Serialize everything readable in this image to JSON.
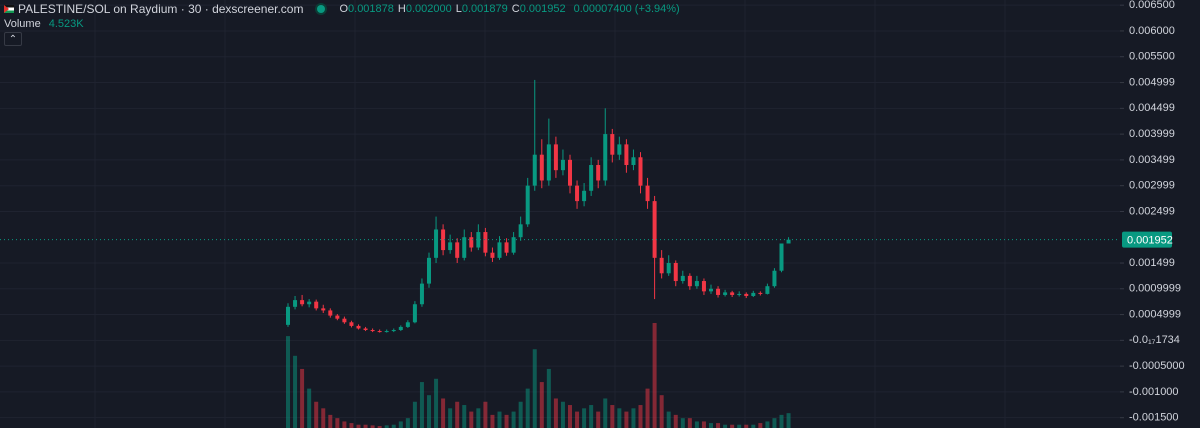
{
  "chart_data": {
    "type": "candlestick",
    "title": "PALESTINE/SOL on Raydium · 30 · dexscreener.com",
    "ohlc_legend": [
      {
        "label": "O",
        "value": "0.001878"
      },
      {
        "label": "H",
        "value": "0.002000"
      },
      {
        "label": "L",
        "value": "0.001879"
      },
      {
        "label": "C",
        "value": "0.001952"
      }
    ],
    "change": "0.00007400 (+3.94%)",
    "volume_label": "Volume",
    "volume_value": "4.523K",
    "up_color": "#089981",
    "down_color": "#f23645",
    "ylim": [
      -0.0017,
      0.0066
    ],
    "yticks": [
      {
        "value": 0.0065,
        "label": "0.006500"
      },
      {
        "value": 0.006,
        "label": "0.006000"
      },
      {
        "value": 0.0055,
        "label": "0.005500"
      },
      {
        "value": 0.004999,
        "label": "0.004999"
      },
      {
        "value": 0.004499,
        "label": "0.004499"
      },
      {
        "value": 0.003999,
        "label": "0.003999"
      },
      {
        "value": 0.003499,
        "label": "0.003499"
      },
      {
        "value": 0.002999,
        "label": "0.002999"
      },
      {
        "value": 0.002499,
        "label": "0.002499"
      },
      {
        "value": 0.001499,
        "label": "0.001499"
      },
      {
        "value": 0.0009999,
        "label": "0.0009999"
      },
      {
        "value": 0.0004999,
        "label": "0.0004999"
      },
      {
        "value": -1.734e-18,
        "label": "-0.0₁₇1734"
      },
      {
        "value": -0.0005,
        "label": "-0.0005000"
      },
      {
        "value": -0.001,
        "label": "-0.001000"
      },
      {
        "value": -0.0015,
        "label": "-0.001500"
      }
    ],
    "last_price": {
      "value": 0.001952,
      "label": "0.001952"
    },
    "candles": [
      [
        0.0003,
        0.00072,
        0.00026,
        0.00065
      ],
      [
        0.00065,
        0.00086,
        0.0006,
        0.00078
      ],
      [
        0.00078,
        0.00088,
        0.00066,
        0.0007
      ],
      [
        0.0007,
        0.0008,
        0.00064,
        0.00075
      ],
      [
        0.00075,
        0.00079,
        0.00058,
        0.00062
      ],
      [
        0.00062,
        0.00069,
        0.00053,
        0.00058
      ],
      [
        0.00058,
        0.00062,
        0.00044,
        0.00048
      ],
      [
        0.00048,
        0.00051,
        0.00039,
        0.00042
      ],
      [
        0.00042,
        0.00046,
        0.00032,
        0.00035
      ],
      [
        0.00035,
        0.00038,
        0.00025,
        0.00028
      ],
      [
        0.00028,
        0.00031,
        0.00021,
        0.00023
      ],
      [
        0.00023,
        0.00026,
        0.00018,
        0.0002
      ],
      [
        0.0002,
        0.00023,
        0.00016,
        0.00018
      ],
      [
        0.00018,
        0.00021,
        0.00015,
        0.00017
      ],
      [
        0.00017,
        0.00021,
        0.00015,
        0.00018
      ],
      [
        0.00018,
        0.00023,
        0.00016,
        0.0002
      ],
      [
        0.0002,
        0.00029,
        0.00018,
        0.00026
      ],
      [
        0.00026,
        0.00039,
        0.00024,
        0.00035
      ],
      [
        0.00035,
        0.00076,
        0.00033,
        0.0007
      ],
      [
        0.0007,
        0.0012,
        0.00065,
        0.0011
      ],
      [
        0.0011,
        0.0017,
        0.00102,
        0.0016
      ],
      [
        0.0016,
        0.0024,
        0.0015,
        0.00215
      ],
      [
        0.00215,
        0.00225,
        0.00165,
        0.00175
      ],
      [
        0.00175,
        0.00205,
        0.00168,
        0.0019
      ],
      [
        0.0019,
        0.00198,
        0.0015,
        0.0016
      ],
      [
        0.0016,
        0.00215,
        0.00155,
        0.002
      ],
      [
        0.002,
        0.0021,
        0.00172,
        0.0018
      ],
      [
        0.0018,
        0.00225,
        0.00175,
        0.0021
      ],
      [
        0.0021,
        0.00218,
        0.00163,
        0.0017
      ],
      [
        0.0017,
        0.0018,
        0.00152,
        0.0016
      ],
      [
        0.0016,
        0.00202,
        0.00156,
        0.0019
      ],
      [
        0.0019,
        0.00198,
        0.00164,
        0.0017
      ],
      [
        0.0017,
        0.0021,
        0.00166,
        0.002
      ],
      [
        0.002,
        0.0024,
        0.00193,
        0.00225
      ],
      [
        0.00225,
        0.00315,
        0.0022,
        0.003
      ],
      [
        0.003,
        0.00505,
        0.0029,
        0.0036
      ],
      [
        0.0036,
        0.0039,
        0.00295,
        0.0031
      ],
      [
        0.0031,
        0.0043,
        0.003,
        0.0038
      ],
      [
        0.0038,
        0.00395,
        0.00315,
        0.0033
      ],
      [
        0.0033,
        0.0037,
        0.0032,
        0.0035
      ],
      [
        0.0035,
        0.0036,
        0.00285,
        0.003
      ],
      [
        0.003,
        0.0031,
        0.00255,
        0.0027
      ],
      [
        0.0027,
        0.00305,
        0.0026,
        0.0029
      ],
      [
        0.0029,
        0.00355,
        0.0028,
        0.0034
      ],
      [
        0.0034,
        0.0035,
        0.00295,
        0.0031
      ],
      [
        0.0031,
        0.0045,
        0.003,
        0.004
      ],
      [
        0.004,
        0.0041,
        0.00345,
        0.0036
      ],
      [
        0.0036,
        0.00395,
        0.0035,
        0.0038
      ],
      [
        0.0038,
        0.0039,
        0.00325,
        0.0034
      ],
      [
        0.0034,
        0.0037,
        0.0033,
        0.00355
      ],
      [
        0.00355,
        0.00365,
        0.00285,
        0.003
      ],
      [
        0.003,
        0.00315,
        0.00255,
        0.0027
      ],
      [
        0.0027,
        0.0028,
        0.0008,
        0.0016
      ],
      [
        0.0016,
        0.00175,
        0.0012,
        0.0013
      ],
      [
        0.0013,
        0.00165,
        0.00125,
        0.0015
      ],
      [
        0.0015,
        0.00155,
        0.00105,
        0.00115
      ],
      [
        0.00115,
        0.00135,
        0.0011,
        0.00125
      ],
      [
        0.00125,
        0.0013,
        0.00098,
        0.00105
      ],
      [
        0.00105,
        0.00125,
        0.001,
        0.00115
      ],
      [
        0.00115,
        0.0012,
        0.00088,
        0.00095
      ],
      [
        0.00095,
        0.00108,
        0.0009,
        0.001
      ],
      [
        0.001,
        0.00105,
        0.00083,
        0.00088
      ],
      [
        0.00088,
        0.00098,
        0.00085,
        0.00093
      ],
      [
        0.00093,
        0.00096,
        0.00084,
        0.00088
      ],
      [
        0.00088,
        0.00095,
        0.00085,
        0.0009
      ],
      [
        0.0009,
        0.00093,
        0.00082,
        0.00086
      ],
      [
        0.00086,
        0.00096,
        0.00084,
        0.00092
      ],
      [
        0.00092,
        0.00095,
        0.00087,
        0.0009
      ],
      [
        0.0009,
        0.0011,
        0.00089,
        0.00105
      ],
      [
        0.00105,
        0.0014,
        0.00102,
        0.00135
      ],
      [
        0.00135,
        0.00185,
        0.00132,
        0.001878
      ],
      [
        0.001878,
        0.002,
        0.001879,
        0.001952
      ]
    ],
    "volumes": [
      28,
      22,
      18,
      12,
      8,
      6,
      4,
      3,
      2,
      1.5,
      1,
      1,
      0.8,
      0.6,
      0.8,
      1,
      2,
      3,
      8,
      14,
      10,
      15,
      9,
      6,
      8,
      7,
      5,
      6,
      8,
      4,
      5,
      4,
      5,
      8,
      12,
      24,
      14,
      18,
      9,
      8,
      7,
      5,
      6,
      7,
      5,
      9,
      7,
      6,
      5,
      6,
      7,
      12,
      32,
      10,
      5,
      4,
      3,
      3,
      2,
      2,
      1.5,
      1.5,
      1,
      1,
      1,
      1,
      1,
      1.5,
      2,
      3,
      4,
      4.523
    ]
  }
}
